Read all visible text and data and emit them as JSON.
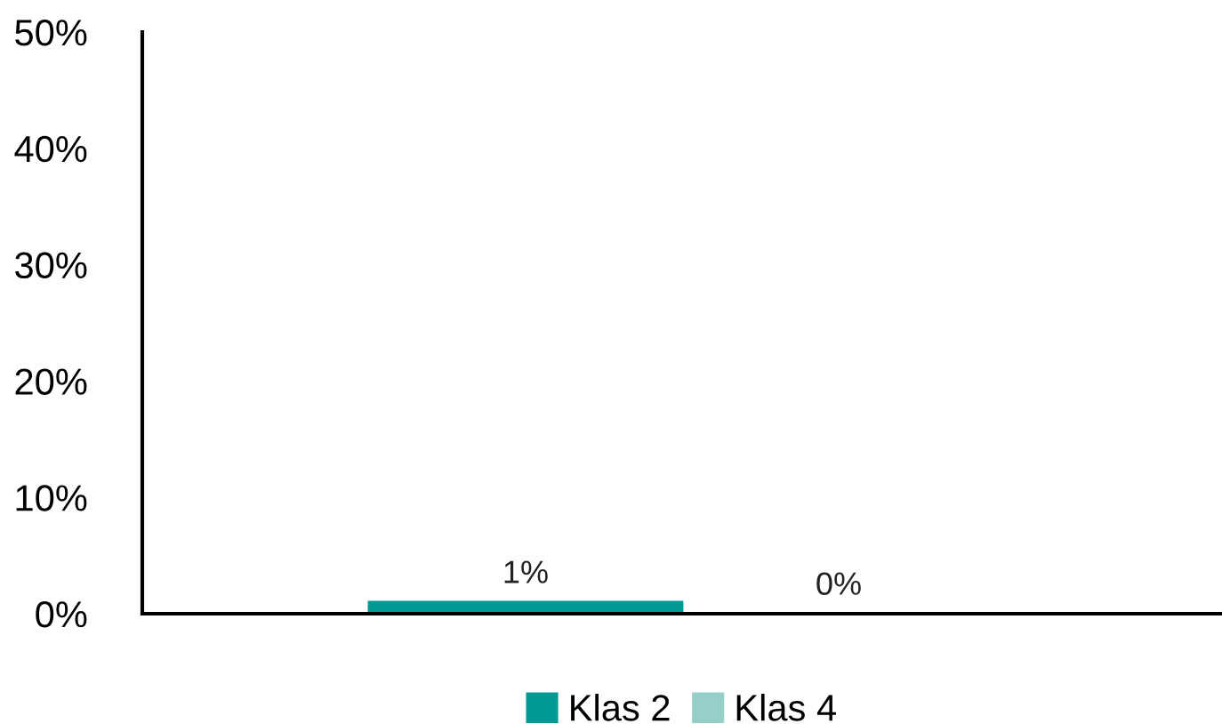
{
  "chart_data": {
    "type": "bar",
    "categories": [
      null
    ],
    "series": [
      {
        "name": "Klas 2",
        "color": "#009a93",
        "values": [
          1
        ],
        "value_labels": [
          "1%"
        ]
      },
      {
        "name": "Klas 4",
        "color": "#96cfca",
        "values": [
          0
        ],
        "value_labels": [
          "0%"
        ]
      }
    ],
    "ylim": [
      0,
      50
    ],
    "yticks": [
      {
        "value": 0,
        "label": "0%"
      },
      {
        "value": 10,
        "label": "10%"
      },
      {
        "value": 20,
        "label": "20%"
      },
      {
        "value": 30,
        "label": "30%"
      },
      {
        "value": 40,
        "label": "40%"
      },
      {
        "value": 50,
        "label": "50%"
      }
    ],
    "grid": false,
    "legend": "bottom"
  }
}
